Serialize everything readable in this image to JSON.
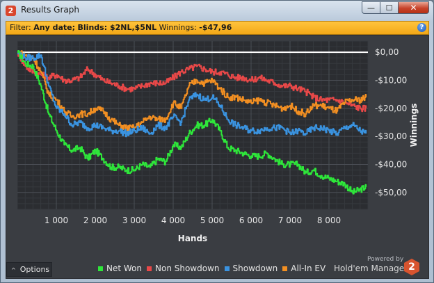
{
  "window": {
    "title": "Results Graph",
    "app_icon_glyph": "2",
    "minimize_glyph": "—",
    "maximize_glyph": "☐",
    "close_glyph": "✕"
  },
  "filter": {
    "prefix": "Filter:",
    "date": "Any date;",
    "blinds": "Blinds: $2NL,$5NL",
    "winnings_label": "Winnings:",
    "winnings_value": "-$47,96",
    "help_glyph": "?"
  },
  "options": {
    "label": "Options",
    "chevron": "^"
  },
  "legend": [
    {
      "name": "Net Won",
      "color": "#2ee63a"
    },
    {
      "name": "Non Showdown",
      "color": "#e84848"
    },
    {
      "name": "Showdown",
      "color": "#3a93e0"
    },
    {
      "name": "All-In EV",
      "color": "#f28f22"
    }
  ],
  "branding": {
    "powered_by": "Powered by",
    "product": "Hold'em Manager",
    "logo_glyph": "2"
  },
  "chart_data": {
    "type": "line",
    "xlabel": "Hands",
    "ylabel": "Winnings",
    "xlim": [
      0,
      9000
    ],
    "ylim": [
      -56,
      4
    ],
    "x_ticks": [
      1000,
      2000,
      3000,
      4000,
      5000,
      6000,
      7000,
      8000
    ],
    "x_tick_labels": [
      "1 000",
      "2 000",
      "3 000",
      "4 000",
      "5 000",
      "6 000",
      "7 000",
      "8 000"
    ],
    "y_ticks": [
      0,
      -10,
      -20,
      -30,
      -40,
      -50
    ],
    "y_tick_labels": [
      "$0,00",
      "-$10,00",
      "-$20,00",
      "-$30,00",
      "-$40,00",
      "-$50,00"
    ],
    "zero_line_color": "#ffffff",
    "grid": true,
    "legend_position": "bottom",
    "x": [
      0,
      200,
      400,
      600,
      800,
      1000,
      1200,
      1400,
      1600,
      1800,
      2000,
      2200,
      2400,
      2600,
      2800,
      3000,
      3200,
      3400,
      3600,
      3800,
      4000,
      4200,
      4400,
      4600,
      4800,
      5000,
      5200,
      5400,
      5600,
      5800,
      6000,
      6200,
      6400,
      6600,
      6800,
      7000,
      7200,
      7400,
      7600,
      7800,
      8000,
      8200,
      8400,
      8600,
      8800,
      8950
    ],
    "series": [
      {
        "name": "Net Won",
        "color": "#2ee63a",
        "values": [
          0,
          -4,
          -5,
          -12,
          -22,
          -28,
          -33,
          -35,
          -34,
          -38,
          -35,
          -38,
          -41,
          -41,
          -42,
          -42,
          -40,
          -41,
          -38,
          -39,
          -33,
          -34,
          -29,
          -26,
          -26,
          -24,
          -28,
          -34,
          -35,
          -36,
          -37,
          -37,
          -36,
          -38,
          -40,
          -40,
          -40,
          -43,
          -42,
          -44,
          -45,
          -46,
          -47,
          -50,
          -49,
          -48
        ]
      },
      {
        "name": "Non Showdown",
        "color": "#e84848",
        "values": [
          0,
          -5,
          -7,
          -8,
          -9,
          -8,
          -10,
          -10,
          -9,
          -6,
          -8,
          -10,
          -11,
          -12,
          -13,
          -13,
          -12,
          -11,
          -11,
          -11,
          -9,
          -7,
          -6,
          -5,
          -6,
          -7,
          -7,
          -8,
          -9,
          -9,
          -10,
          -9,
          -10,
          -11,
          -12,
          -12,
          -13,
          -14,
          -16,
          -17,
          -17,
          -17,
          -18,
          -19,
          -20,
          -20
        ]
      },
      {
        "name": "Showdown",
        "color": "#3a93e0",
        "values": [
          0,
          -2,
          -2,
          -1,
          -12,
          -20,
          -22,
          -26,
          -25,
          -27,
          -26,
          -27,
          -28,
          -28,
          -29,
          -28,
          -27,
          -29,
          -26,
          -27,
          -23,
          -25,
          -17,
          -15,
          -17,
          -16,
          -19,
          -24,
          -26,
          -27,
          -28,
          -28,
          -27,
          -27,
          -27,
          -29,
          -28,
          -29,
          -27,
          -27,
          -28,
          -29,
          -27,
          -26,
          -28,
          -29
        ]
      },
      {
        "name": "All-In EV",
        "color": "#f28f22",
        "values": [
          0,
          -1,
          -2,
          -7,
          -15,
          -17,
          -21,
          -23,
          -22,
          -22,
          -20,
          -21,
          -24,
          -26,
          -27,
          -27,
          -25,
          -23,
          -24,
          -24,
          -18,
          -20,
          -12,
          -10,
          -11,
          -10,
          -13,
          -16,
          -16,
          -17,
          -18,
          -17,
          -18,
          -19,
          -20,
          -19,
          -21,
          -22,
          -19,
          -19,
          -20,
          -21,
          -18,
          -17,
          -17,
          -16
        ]
      }
    ]
  }
}
